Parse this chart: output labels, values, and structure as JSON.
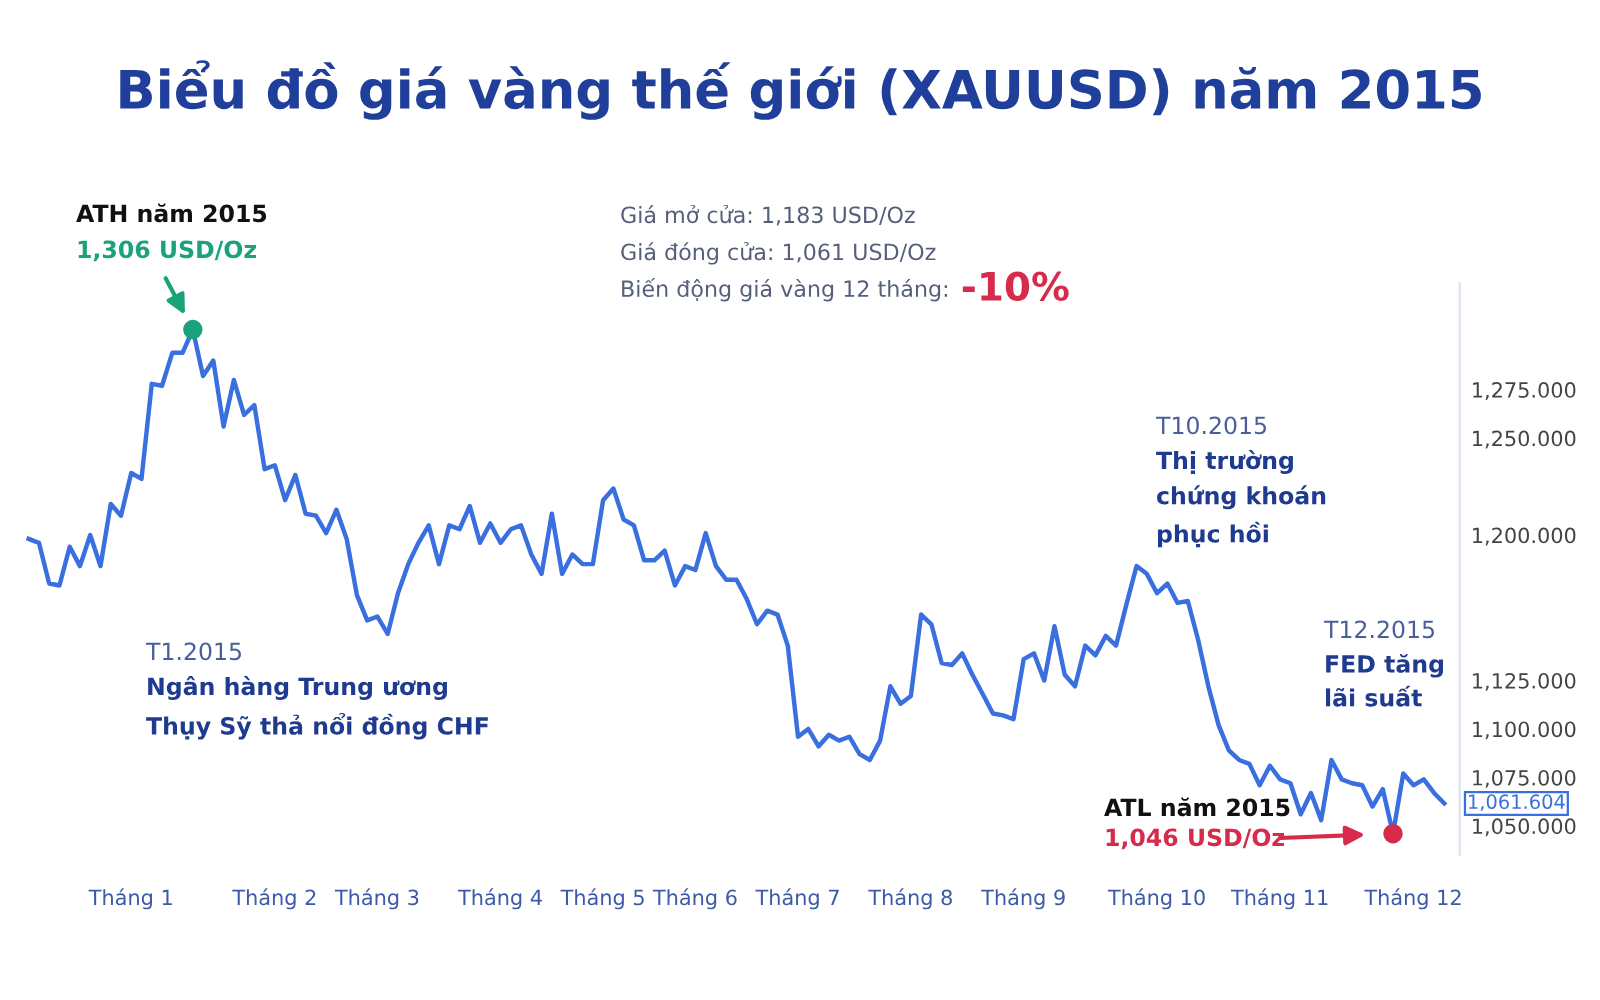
{
  "chart_data": {
    "type": "line",
    "title": "Biểu đồ giá vàng thế giới (XAUUSD) năm 2015",
    "categories": [
      null,
      null,
      null,
      null,
      null,
      null,
      null,
      null,
      null,
      null,
      "Tháng 1",
      null,
      null,
      null,
      null,
      null,
      null,
      null,
      null,
      null,
      null,
      null,
      null,
      null,
      "Tháng 2",
      null,
      null,
      null,
      null,
      null,
      null,
      null,
      null,
      null,
      "Tháng 3",
      null,
      null,
      null,
      null,
      null,
      null,
      null,
      null,
      null,
      null,
      null,
      "Tháng 4",
      null,
      null,
      null,
      null,
      null,
      null,
      null,
      null,
      null,
      "Tháng 5",
      null,
      null,
      null,
      null,
      null,
      null,
      null,
      null,
      "Tháng 6",
      null,
      null,
      null,
      null,
      null,
      null,
      null,
      null,
      null,
      "Tháng 7",
      null,
      null,
      null,
      null,
      null,
      null,
      null,
      null,
      null,
      null,
      "Tháng 8",
      null,
      null,
      null,
      null,
      null,
      null,
      null,
      null,
      null,
      null,
      "Tháng 9",
      null,
      null,
      null,
      null,
      null,
      null,
      null,
      null,
      null,
      null,
      null,
      null,
      "Tháng 10",
      null,
      null,
      null,
      null,
      null,
      null,
      null,
      null,
      null,
      null,
      null,
      "Tháng 11",
      null,
      null,
      null,
      null,
      null,
      null,
      null,
      null,
      null,
      null,
      null,
      null,
      "Tháng 12",
      null,
      null,
      null
    ],
    "series": [
      {
        "color": "#3a6fe0",
        "values": [
          1198,
          1196,
          1175,
          1174,
          1194,
          1184,
          1200,
          1184,
          1216,
          1210,
          1232,
          1229,
          1278,
          1277,
          1294,
          1294,
          1306,
          1282,
          1290,
          1256,
          1280,
          1262,
          1267,
          1234,
          1236,
          1218,
          1231,
          1211,
          1210,
          1201,
          1213,
          1198,
          1169,
          1156,
          1158,
          1149,
          1170,
          1185,
          1196,
          1205,
          1185,
          1205,
          1203,
          1215,
          1196,
          1206,
          1196,
          1203,
          1205,
          1190,
          1180,
          1211,
          1180,
          1190,
          1185,
          1185,
          1218,
          1224,
          1208,
          1205,
          1187,
          1187,
          1192,
          1174,
          1184,
          1182,
          1201,
          1184,
          1177,
          1177,
          1167,
          1154,
          1161,
          1159,
          1143,
          1096,
          1100,
          1091,
          1097,
          1094,
          1096,
          1087,
          1084,
          1094,
          1122,
          1113,
          1117,
          1159,
          1154,
          1134,
          1133,
          1139,
          1128,
          1118,
          1108,
          1107,
          1105,
          1136,
          1139,
          1125,
          1153,
          1128,
          1122,
          1143,
          1138,
          1148,
          1143,
          1164,
          1184,
          1180,
          1170,
          1175,
          1165,
          1166,
          1146,
          1122,
          1102,
          1089,
          1084,
          1082,
          1071,
          1081,
          1074,
          1072,
          1056,
          1067,
          1053,
          1084,
          1074,
          1072,
          1071,
          1060,
          1069,
          1046,
          1077,
          1071,
          1074,
          1067,
          1061.604
        ]
      }
    ],
    "yticks": [
      {
        "value": 1050,
        "label": "1,050.000"
      },
      {
        "value": 1075,
        "label": "1,075.000"
      },
      {
        "value": 1100,
        "label": "1,100.000"
      },
      {
        "value": 1125,
        "label": "1,125.000"
      },
      {
        "value": 1200,
        "label": "1,200.000"
      },
      {
        "value": 1250,
        "label": "1,250.000"
      },
      {
        "value": 1275,
        "label": "1,275.000"
      }
    ],
    "ylim": [
      1035,
      1330
    ],
    "grid": false,
    "legend": false,
    "marker": "none",
    "line_style": "solid",
    "annotations": [
      "ATH năm 2015",
      "1,306 USD/Oz",
      "Giá mở cửa: 1,183 USD/Oz",
      "Giá đóng cửa: 1,061 USD/Oz",
      "Biến động giá vàng 12 tháng:",
      "-10%",
      "T1.2015",
      "Ngân hàng Trung ương\nThụy Sỹ thả nổi đồng CHF",
      "T10.2015",
      "Thị trường\nchứng khoán\nphục hồi",
      "T12.2015",
      "FED tăng\nlãi suất",
      "ATL năm 2015",
      "1,046 USD/Oz",
      "1,061.604"
    ]
  }
}
